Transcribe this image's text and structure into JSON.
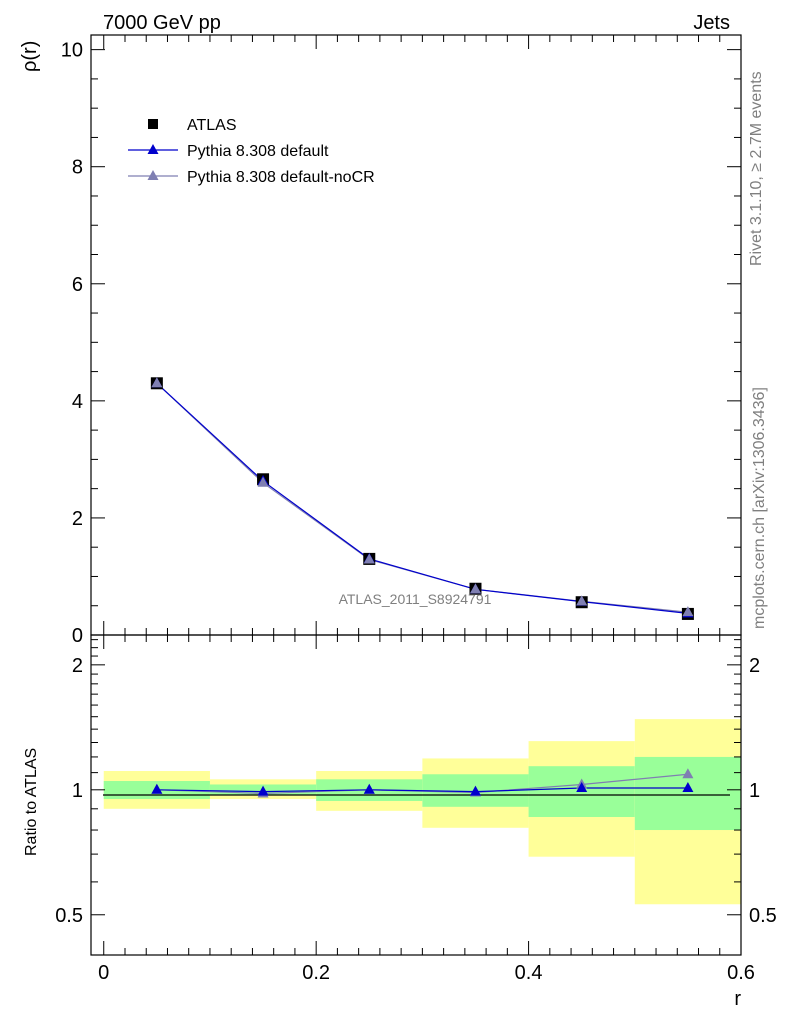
{
  "header": {
    "left": "7000 GeV pp",
    "right": "Jets"
  },
  "side_text": {
    "top": "Rivet 3.1.10, ≥ 2.7M events",
    "bottom": "mcplots.cern.ch [arXiv:1306.3436]"
  },
  "analysis_label": "ATLAS_2011_S8924791",
  "colors": {
    "data": "#000000",
    "pythia_default": "#0000cc",
    "pythia_nocr": "#7f7fb2",
    "band_inner": "#99ff99",
    "band_outer": "#ffff99"
  },
  "chart_data": [
    {
      "type": "line",
      "panel": "main",
      "ylabel": "ρ(r)",
      "xlim": [
        -0.012,
        0.6
      ],
      "ylim": [
        0,
        10.25
      ],
      "yticks": [
        "0",
        "2",
        "4",
        "6",
        "8",
        "10"
      ],
      "x": [
        0.05,
        0.15,
        0.25,
        0.35,
        0.45,
        0.55
      ],
      "series": [
        {
          "name": "ATLAS",
          "marker": "square",
          "values": [
            4.3,
            2.66,
            1.3,
            0.79,
            0.56,
            0.36
          ]
        },
        {
          "name": "Pythia 8.308 default",
          "marker": "triangle",
          "values": [
            4.3,
            2.63,
            1.3,
            0.78,
            0.57,
            0.37
          ]
        },
        {
          "name": "Pythia 8.308 default-noCR",
          "marker": "triangle",
          "values": [
            4.3,
            2.6,
            1.29,
            0.78,
            0.575,
            0.39
          ]
        }
      ]
    },
    {
      "type": "line",
      "panel": "ratio",
      "ylabel": "Ratio to ATLAS",
      "xlabel": "r",
      "xlim": [
        -0.012,
        0.6
      ],
      "ylim": [
        0.4,
        2.36
      ],
      "yscale": "log",
      "yticks": [
        "0.5",
        "1",
        "2"
      ],
      "xticks": [
        "0",
        "0.2",
        "0.4",
        "0.6"
      ],
      "bins": [
        [
          0.0,
          0.1
        ],
        [
          0.1,
          0.2
        ],
        [
          0.2,
          0.3
        ],
        [
          0.3,
          0.4
        ],
        [
          0.4,
          0.5
        ],
        [
          0.5,
          0.6
        ]
      ],
      "band_inner": [
        [
          0.95,
          1.05
        ],
        [
          0.97,
          1.03
        ],
        [
          0.94,
          1.06
        ],
        [
          0.91,
          1.09
        ],
        [
          0.86,
          1.14
        ],
        [
          0.8,
          1.2
        ]
      ],
      "band_outer": [
        [
          0.9,
          1.11
        ],
        [
          0.95,
          1.06
        ],
        [
          0.89,
          1.11
        ],
        [
          0.81,
          1.19
        ],
        [
          0.69,
          1.31
        ],
        [
          0.53,
          1.48
        ]
      ],
      "x": [
        0.05,
        0.15,
        0.25,
        0.35,
        0.45,
        0.55
      ],
      "series": [
        {
          "name": "Pythia 8.308 default",
          "values": [
            1.0,
            0.99,
            1.0,
            0.99,
            1.01,
            1.01
          ]
        },
        {
          "name": "Pythia 8.308 default-noCR",
          "values": [
            1.0,
            0.98,
            1.0,
            0.985,
            1.03,
            1.09
          ]
        }
      ]
    }
  ]
}
